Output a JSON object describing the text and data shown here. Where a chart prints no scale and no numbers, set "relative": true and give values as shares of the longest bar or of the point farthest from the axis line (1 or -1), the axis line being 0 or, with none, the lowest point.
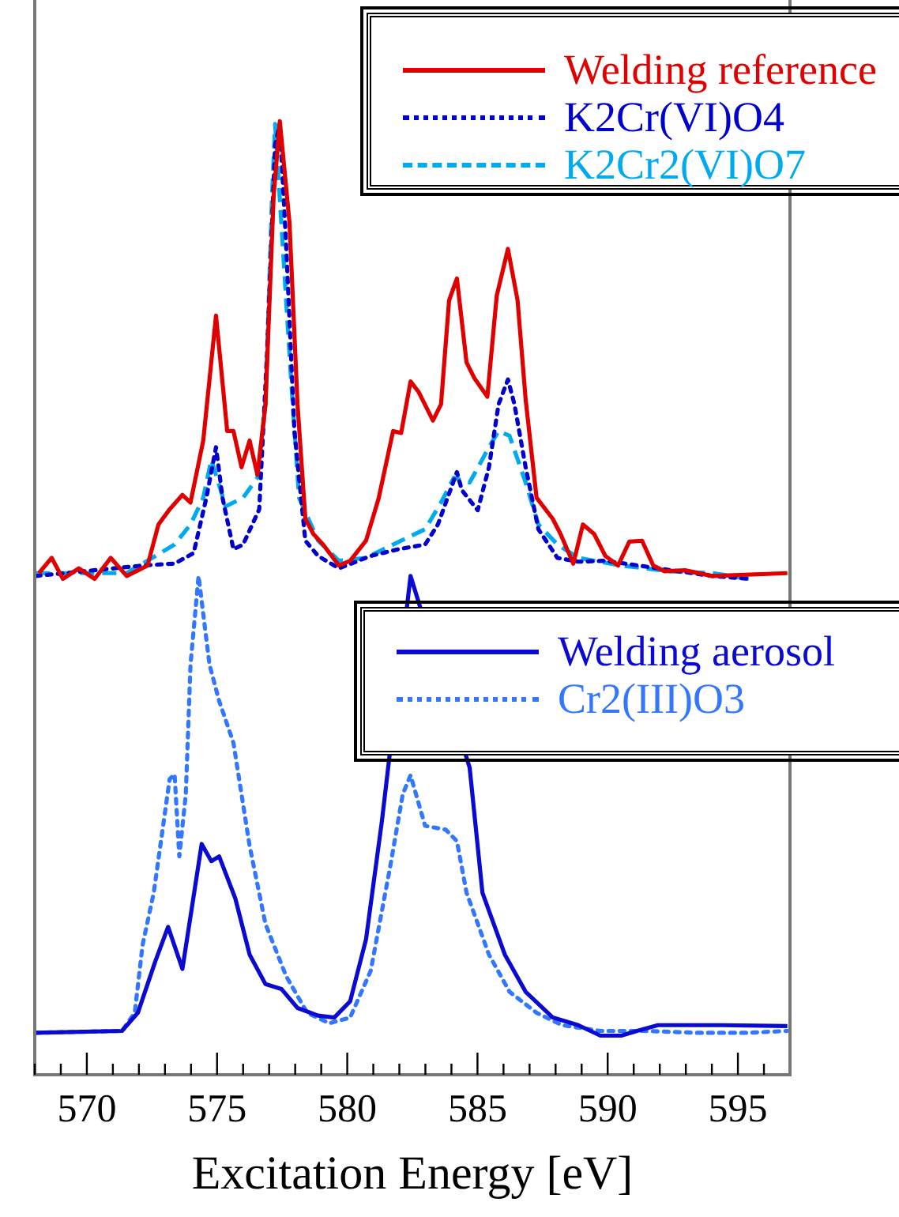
{
  "chart_data": {
    "type": "line",
    "relative": true,
    "xlabel": "Excitation Energy [eV]",
    "xlim": [
      568,
      597
    ],
    "xticks": [
      {
        "value": 568,
        "label": null
      },
      {
        "value": 569,
        "label": null
      },
      570,
      {
        "value": 571,
        "label": null
      },
      {
        "value": 572,
        "label": null
      },
      {
        "value": 573,
        "label": null
      },
      {
        "value": 574,
        "label": null
      },
      575,
      {
        "value": 576,
        "label": null
      },
      {
        "value": 577,
        "label": null
      },
      {
        "value": 578,
        "label": null
      },
      {
        "value": 579,
        "label": null
      },
      580,
      {
        "value": 581,
        "label": null
      },
      {
        "value": 582,
        "label": null
      },
      {
        "value": 583,
        "label": null
      },
      {
        "value": 584,
        "label": null
      },
      585,
      {
        "value": 586,
        "label": null
      },
      {
        "value": 587,
        "label": null
      },
      {
        "value": 588,
        "label": null
      },
      {
        "value": 589,
        "label": null
      },
      590,
      {
        "value": 591,
        "label": null
      },
      {
        "value": 592,
        "label": null
      },
      {
        "value": 593,
        "label": null
      },
      {
        "value": 594,
        "label": null
      },
      595,
      {
        "value": 596,
        "label": null
      }
    ],
    "grid": false,
    "legend": "top right",
    "marker": "none",
    "series": [
      {
        "name": "Welding reference",
        "color": "#e00000",
        "line_style": "solid",
        "x": [
          568.16,
          568.65,
          569.08,
          569.69,
          570.3,
          570.92,
          571.53,
          572.33,
          572.75,
          573.18,
          573.67,
          573.98,
          574.47,
          574.96,
          575.39,
          575.63,
          575.94,
          576.25,
          576.55,
          576.86,
          577.17,
          577.41,
          577.78,
          578.09,
          578.39,
          578.7,
          579.07,
          579.68,
          580.11,
          580.72,
          581.21,
          581.76,
          582.07,
          582.43,
          582.74,
          583.29,
          583.6,
          583.91,
          584.21,
          584.58,
          584.89,
          585.38,
          585.74,
          586.17,
          586.54,
          586.85,
          587.27,
          587.89,
          588.19,
          588.68,
          589.05,
          589.48,
          589.91,
          590.4,
          590.83,
          591.32,
          591.75,
          592.18,
          592.97,
          594.02,
          596.9
        ],
        "values": [
          0.526,
          0.542,
          0.52,
          0.531,
          0.52,
          0.542,
          0.523,
          0.534,
          0.577,
          0.593,
          0.608,
          0.6,
          0.665,
          0.796,
          0.675,
          0.675,
          0.637,
          0.665,
          0.629,
          0.703,
          0.92,
          1,
          0.894,
          0.703,
          0.583,
          0.567,
          0.556,
          0.534,
          0.539,
          0.56,
          0.605,
          0.675,
          0.673,
          0.727,
          0.716,
          0.686,
          0.703,
          0.812,
          0.835,
          0.747,
          0.73,
          0.711,
          0.817,
          0.866,
          0.812,
          0.708,
          0.605,
          0.583,
          0.567,
          0.536,
          0.577,
          0.567,
          0.544,
          0.534,
          0.559,
          0.56,
          0.534,
          0.528,
          0.529,
          0.523,
          0.526
        ]
      },
      {
        "name": "K2Cr(VI)O4",
        "color": "#0000cc",
        "line_style": "dotted",
        "x": [
          568.04,
          572.14,
          573.37,
          574.1,
          574.59,
          574.96,
          575.21,
          575.63,
          576,
          576.62,
          576.92,
          577.23,
          577.41,
          577.66,
          577.97,
          578.39,
          578.88,
          579.68,
          580.9,
          581.95,
          582.99,
          583.48,
          584.21,
          584.4,
          585.01,
          585.44,
          585.81,
          586.17,
          586.42,
          586.85,
          587.34,
          588.07,
          588.87,
          589.91,
          591.93,
          594.02,
          595.43
        ],
        "values": [
          0.523,
          0.534,
          0.536,
          0.547,
          0.605,
          0.658,
          0.605,
          0.551,
          0.556,
          0.593,
          0.757,
          0.975,
          0.997,
          0.866,
          0.675,
          0.56,
          0.544,
          0.531,
          0.544,
          0.551,
          0.556,
          0.577,
          0.632,
          0.613,
          0.592,
          0.637,
          0.703,
          0.729,
          0.703,
          0.637,
          0.572,
          0.542,
          0.538,
          0.539,
          0.531,
          0.523,
          0.52
        ]
      },
      {
        "name": "K2Cr2(VI)O7",
        "color": "#00aaee",
        "line_style": "dashed",
        "x": [
          568.04,
          571.53,
          572.33,
          573.37,
          573.98,
          574.47,
          574.78,
          575.33,
          576,
          576.55,
          576.86,
          577.11,
          577.23,
          577.53,
          577.84,
          578.15,
          578.88,
          579.68,
          580.72,
          581.76,
          582.99,
          583.6,
          584.09,
          584.7,
          585.44,
          585.81,
          586.23,
          586.85,
          587.34,
          588.07,
          588.87,
          590.52,
          592.36,
          594.02,
          595.43
        ],
        "values": [
          0.526,
          0.526,
          0.539,
          0.556,
          0.577,
          0.605,
          0.645,
          0.596,
          0.605,
          0.626,
          0.703,
          0.92,
          0.997,
          0.866,
          0.73,
          0.605,
          0.56,
          0.539,
          0.542,
          0.556,
          0.572,
          0.6,
          0.626,
          0.621,
          0.658,
          0.675,
          0.67,
          0.621,
          0.577,
          0.556,
          0.542,
          0.534,
          0.528,
          0.526,
          0.52
        ]
      },
      {
        "name": "Welding aerosol",
        "color": "#0a0ad0",
        "line_style": "solid",
        "x": [
          568.04,
          571.35,
          571.96,
          572.63,
          573.12,
          573.67,
          574.41,
          574.78,
          575.08,
          575.7,
          576.25,
          576.86,
          577.47,
          578.09,
          578.88,
          579.5,
          580.11,
          580.72,
          581.33,
          581.82,
          582.43,
          584.7,
          585.19,
          586.05,
          586.85,
          587.89,
          588.87,
          589.72,
          590.52,
          591.13,
          591.93,
          594.38,
          596.9
        ],
        "values": [
          0.044,
          0.046,
          0.065,
          0.119,
          0.155,
          0.111,
          0.242,
          0.224,
          0.229,
          0.185,
          0.126,
          0.095,
          0.09,
          0.07,
          0.062,
          0.06,
          0.077,
          0.142,
          0.266,
          null,
          0.523,
          0.322,
          0.191,
          0.126,
          0.087,
          0.06,
          0.052,
          0.041,
          0.041,
          0.046,
          0.052,
          0.052,
          0.051
        ]
      },
      {
        "name": "Cr2(III)O3",
        "color": "#3377ff",
        "line_style": "dotted",
        "x": [
          568.04,
          571.35,
          571.84,
          572.14,
          572.57,
          573.18,
          573.37,
          573.55,
          573.8,
          573.98,
          574.29,
          574.71,
          575.08,
          575.63,
          576.25,
          576.86,
          577.66,
          578.46,
          579.31,
          580.11,
          580.9,
          581.64,
          582.13,
          582.43,
          582.99,
          583.78,
          584.21,
          584.58,
          585.44,
          586.23,
          587.27,
          588.25,
          589.72,
          591.32,
          593.4,
          595.43,
          596.9
        ],
        "values": [
          0.044,
          0.046,
          0.065,
          0.136,
          0.191,
          0.31,
          0.315,
          0.229,
          0.294,
          0.43,
          0.523,
          0.43,
          0.392,
          0.348,
          0.24,
          0.158,
          0.103,
          0.065,
          0.054,
          0.06,
          0.109,
          0.217,
          0.294,
          0.314,
          0.261,
          0.257,
          0.245,
          0.191,
          0.126,
          0.087,
          0.065,
          0.052,
          0.046,
          0.046,
          0.044,
          0.044,
          0.046
        ]
      }
    ]
  }
}
